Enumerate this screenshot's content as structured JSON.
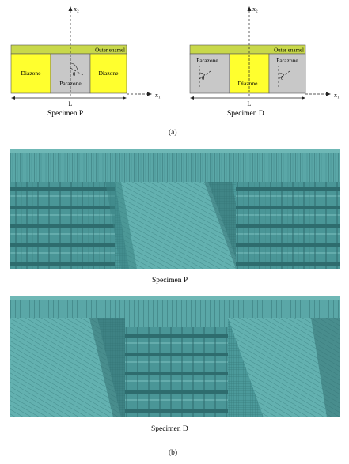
{
  "part_a": {
    "label": "(a)",
    "axis_x": "x₁",
    "axis_y": "x₂",
    "length_label": "L",
    "angle_label": "θ",
    "specimen_p": {
      "caption": "Specimen P",
      "outer": "Outer enamel",
      "zones": [
        "Diazone",
        "Parazone",
        "Diazone"
      ]
    },
    "specimen_d": {
      "caption": "Specimen D",
      "outer": "Outer enamel",
      "zones": [
        "Parazone",
        "Diazone",
        "Parazone"
      ]
    }
  },
  "part_b": {
    "label": "(b)",
    "mesh_p_caption": "Specimen P",
    "mesh_d_caption": "Specimen D"
  },
  "colors": {
    "outer_enamel": "#c8d84a",
    "diazone": "#ffff2e",
    "parazone": "#c8c8c8",
    "mesh_base": "#4c9a9b",
    "mesh_dark": "#2d6b6d",
    "mesh_light": "#7fc3c2"
  }
}
